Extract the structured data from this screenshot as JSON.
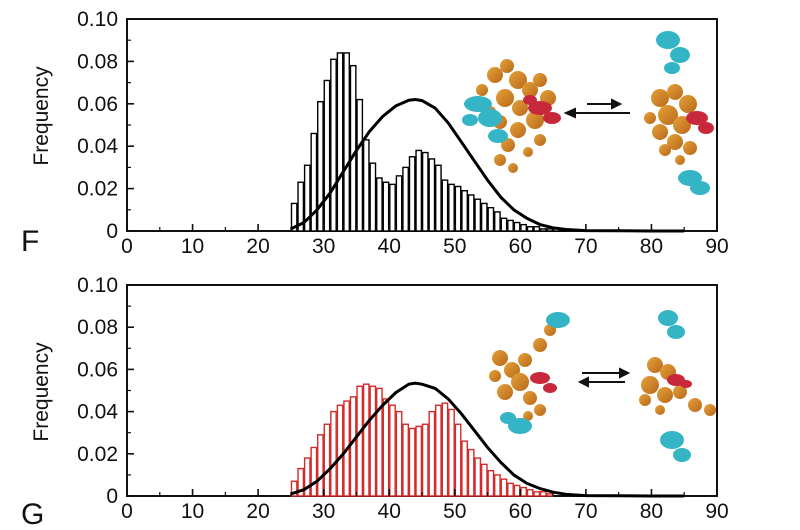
{
  "chart_data": [
    {
      "panel_label": "F",
      "type": "bar",
      "overlay": "line",
      "ylabel": "Frequency",
      "xlim": [
        0,
        90
      ],
      "ylim": [
        0,
        0.1
      ],
      "xticks": [
        "0",
        "10",
        "20",
        "30",
        "40",
        "50",
        "60",
        "70",
        "80",
        "90"
      ],
      "yticks": [
        "0",
        "0.02",
        "0.04",
        "0.06",
        "0.08",
        "0.10"
      ],
      "bin_width": 1,
      "bar_color": "#000000",
      "bar_fill": "#ffffff",
      "line_color": "#000000",
      "bars": {
        "x": [
          25,
          26,
          27,
          28,
          29,
          30,
          31,
          32,
          33,
          34,
          35,
          36,
          37,
          38,
          39,
          40,
          41,
          42,
          43,
          44,
          45,
          46,
          47,
          48,
          49,
          50,
          51,
          52,
          53,
          54,
          55,
          56,
          57,
          58,
          59,
          60,
          61,
          62,
          63,
          64,
          65,
          66
        ],
        "values": [
          0.013,
          0.023,
          0.031,
          0.046,
          0.061,
          0.071,
          0.081,
          0.084,
          0.084,
          0.078,
          0.062,
          0.043,
          0.032,
          0.025,
          0.023,
          0.022,
          0.026,
          0.03,
          0.035,
          0.038,
          0.037,
          0.034,
          0.031,
          0.024,
          0.022,
          0.021,
          0.019,
          0.017,
          0.015,
          0.013,
          0.011,
          0.009,
          0.006,
          0.005,
          0.004,
          0.003,
          0.002,
          0.002,
          0.001,
          0.001,
          0.001,
          0.001
        ]
      },
      "curve": {
        "x": [
          25,
          27,
          29,
          31,
          33,
          35,
          37,
          39,
          41,
          43,
          44,
          45,
          47,
          49,
          51,
          53,
          55,
          57,
          59,
          61,
          63,
          65,
          67,
          70,
          75,
          80,
          85
        ],
        "y": [
          0.001,
          0.004,
          0.01,
          0.018,
          0.028,
          0.038,
          0.047,
          0.054,
          0.059,
          0.0617,
          0.062,
          0.0615,
          0.058,
          0.051,
          0.042,
          0.033,
          0.024,
          0.016,
          0.01,
          0.006,
          0.003,
          0.0015,
          0.0007,
          0.0002,
          0.0001,
          0,
          0
        ]
      }
    },
    {
      "panel_label": "G",
      "type": "bar",
      "overlay": "line",
      "ylabel": "Frequency",
      "xlim": [
        0,
        90
      ],
      "ylim": [
        0,
        0.1
      ],
      "xticks": [
        "0",
        "10",
        "20",
        "30",
        "40",
        "50",
        "60",
        "70",
        "80",
        "90"
      ],
      "yticks": [
        "0",
        "0.02",
        "0.04",
        "0.06",
        "0.08",
        "0.10"
      ],
      "bin_width": 1,
      "bar_color": "#d42a2a",
      "bar_fill": "#ffffff",
      "line_color": "#000000",
      "bars": {
        "x": [
          25,
          26,
          27,
          28,
          29,
          30,
          31,
          32,
          33,
          34,
          35,
          36,
          37,
          38,
          39,
          40,
          41,
          42,
          43,
          44,
          45,
          46,
          47,
          48,
          49,
          50,
          51,
          52,
          53,
          54,
          55,
          56,
          57,
          58,
          59,
          60,
          61,
          62,
          63,
          64
        ],
        "values": [
          0.007,
          0.013,
          0.018,
          0.023,
          0.029,
          0.034,
          0.04,
          0.043,
          0.045,
          0.047,
          0.052,
          0.053,
          0.052,
          0.051,
          0.046,
          0.043,
          0.04,
          0.034,
          0.032,
          0.033,
          0.034,
          0.04,
          0.043,
          0.044,
          0.041,
          0.034,
          0.026,
          0.022,
          0.018,
          0.015,
          0.012,
          0.01,
          0.008,
          0.006,
          0.005,
          0.004,
          0.003,
          0.002,
          0.002,
          0.001
        ]
      },
      "curve": {
        "x": [
          25,
          27,
          29,
          31,
          33,
          35,
          37,
          39,
          41,
          43,
          44,
          45,
          47,
          49,
          51,
          53,
          55,
          57,
          59,
          61,
          63,
          65,
          67,
          70,
          75,
          80,
          85
        ],
        "y": [
          0.001,
          0.003,
          0.007,
          0.013,
          0.02,
          0.028,
          0.036,
          0.043,
          0.049,
          0.053,
          0.0535,
          0.053,
          0.051,
          0.046,
          0.039,
          0.031,
          0.023,
          0.016,
          0.01,
          0.006,
          0.0035,
          0.0018,
          0.0008,
          0.0002,
          0.0001,
          0,
          0
        ]
      }
    }
  ]
}
